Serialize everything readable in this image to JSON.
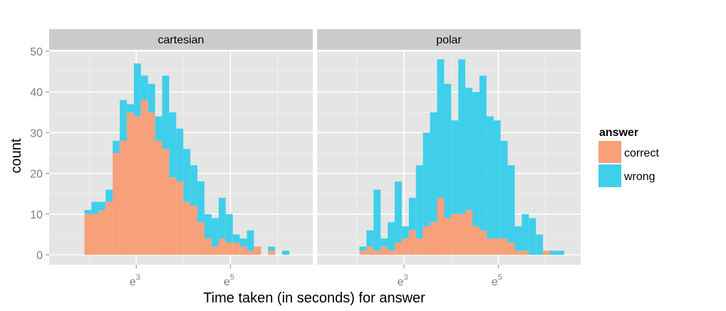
{
  "chart_data": {
    "type": "bar",
    "stacked": true,
    "x_scale": "log",
    "xlabel": "Time taken (in seconds) for answer",
    "ylabel": "count",
    "ylim": [
      0,
      54
    ],
    "y_ticks": [
      0,
      10,
      20,
      30,
      40,
      50
    ],
    "x_ticks": [
      {
        "label": "e",
        "exponent": "3",
        "log_value": 3
      },
      {
        "label": "e",
        "exponent": "5",
        "log_value": 5
      }
    ],
    "xlim_log": [
      1.15,
      6.75
    ],
    "bin_width_log": 0.15,
    "bin_start_log": [
      1.9,
      2.05,
      2.2,
      2.35,
      2.5,
      2.65,
      2.8,
      2.95,
      3.1,
      3.25,
      3.4,
      3.55,
      3.7,
      3.85,
      4.0,
      4.15,
      4.3,
      4.45,
      4.6,
      4.75,
      4.9,
      5.05,
      5.2,
      5.35,
      5.5,
      5.65,
      5.8,
      5.95,
      6.1,
      6.25
    ],
    "legend": {
      "title": "answer",
      "position": "right",
      "entries": [
        {
          "name": "correct",
          "color": "#f8a07a"
        },
        {
          "name": "wrong",
          "color": "#3fcfeb"
        }
      ]
    },
    "panels": [
      {
        "title": "cartesian",
        "series": [
          {
            "name": "correct",
            "values": [
              10,
              10,
              11,
              13,
              25,
              28,
              35,
              34,
              38,
              35,
              28,
              26,
              19,
              18,
              13,
              12,
              8,
              4,
              2,
              4,
              3,
              3,
              2,
              1,
              2,
              0,
              1,
              0,
              0,
              0
            ]
          },
          {
            "name": "wrong",
            "values": [
              1,
              3,
              2,
              3,
              3,
              10,
              2,
              13,
              6,
              7,
              6,
              18,
              16,
              13,
              13,
              10,
              10,
              6,
              7,
              10,
              7,
              2,
              2,
              5,
              0,
              0,
              1,
              0,
              1,
              0
            ]
          }
        ]
      },
      {
        "title": "polar",
        "series": [
          {
            "name": "correct",
            "values": [
              0,
              1,
              2,
              1,
              2,
              1,
              3,
              4,
              6,
              4,
              7,
              8,
              14,
              9,
              10,
              10,
              11,
              7,
              6,
              4,
              4,
              4,
              3,
              1,
              1,
              0,
              0,
              1,
              0,
              0
            ]
          },
          {
            "name": "wrong",
            "values": [
              0,
              1,
              4,
              15,
              2,
              7,
              15,
              3,
              8,
              18,
              23,
              27,
              34,
              33,
              23,
              38,
              30,
              33,
              38,
              30,
              29,
              24,
              19,
              6,
              9,
              9,
              5,
              0,
              1,
              1
            ]
          }
        ]
      }
    ]
  }
}
